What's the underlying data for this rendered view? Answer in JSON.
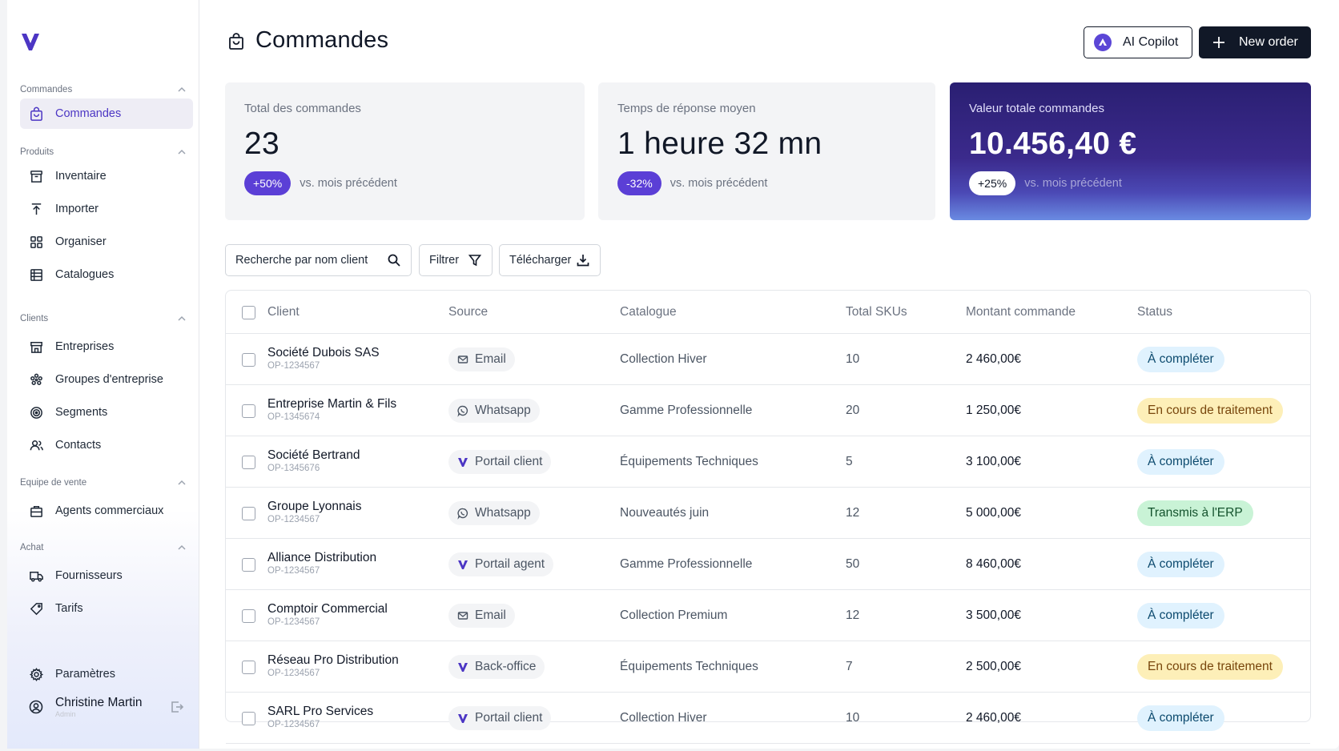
{
  "colors": {
    "accent": "#4c36c4",
    "dark": "#111827",
    "purple_badge": "#5b3fd6"
  },
  "sidebar": {
    "sections": [
      {
        "title": "Commandes",
        "items": [
          {
            "label": "Commandes",
            "icon": "bag-icon",
            "active": true
          }
        ]
      },
      {
        "title": "Produits",
        "items": [
          {
            "label": "Inventaire",
            "icon": "archive-icon"
          },
          {
            "label": "Importer",
            "icon": "upload-icon"
          },
          {
            "label": "Organiser",
            "icon": "grid-icon"
          },
          {
            "label": "Catalogues",
            "icon": "catalog-icon"
          }
        ]
      },
      {
        "title": "Clients",
        "items": [
          {
            "label": "Entreprises",
            "icon": "store-icon"
          },
          {
            "label": "Groupes d'entreprise",
            "icon": "group-icon"
          },
          {
            "label": "Segments",
            "icon": "target-icon"
          },
          {
            "label": "Contacts",
            "icon": "users-icon"
          }
        ]
      },
      {
        "title": "Equipe de vente",
        "items": [
          {
            "label": "Agents commerciaux",
            "icon": "briefcase-icon"
          }
        ]
      },
      {
        "title": "Achat",
        "items": [
          {
            "label": "Fournisseurs",
            "icon": "truck-icon"
          },
          {
            "label": "Tarifs",
            "icon": "tag-icon"
          }
        ]
      }
    ],
    "settings_label": "Paramètres",
    "user": {
      "name": "Christine Martin",
      "role": "Admin"
    }
  },
  "header": {
    "title": "Commandes",
    "copilot_label": "AI Copilot",
    "new_order_label": "New order"
  },
  "stats": [
    {
      "label": "Total des commandes",
      "value": "23",
      "badge": "+50%",
      "compare": "vs. mois précédent"
    },
    {
      "label": "Temps de réponse moyen",
      "value": "1 heure 32 mn",
      "badge": "-32%",
      "compare": "vs. mois précédent"
    },
    {
      "label": "Valeur totale commandes",
      "value": "10.456,40 €",
      "badge": "+25%",
      "compare": "vs. mois précédent"
    }
  ],
  "toolbar": {
    "search_placeholder": "Recherche par nom client",
    "filter_label": "Filtrer",
    "download_label": "Télécharger"
  },
  "table": {
    "columns": [
      "Client",
      "Source",
      "Catalogue",
      "Total SKUs",
      "Montant commande",
      "Status"
    ],
    "rows": [
      {
        "client": "Société Dubois SAS",
        "id": "OP-1234567",
        "source": "Email",
        "source_icon": "mail-icon",
        "catalogue": "Collection Hiver",
        "skus": "10",
        "amount": "2 460,00€",
        "status": "À compléter",
        "status_kind": "blue"
      },
      {
        "client": "Entreprise Martin & Fils",
        "id": "OP-1345674",
        "source": "Whatsapp",
        "source_icon": "whatsapp-icon",
        "catalogue": "Gamme Professionnelle",
        "skus": "20",
        "amount": "1 250,00€",
        "status": "En cours de traitement",
        "status_kind": "yellow"
      },
      {
        "client": "Société Bertrand",
        "id": "OP-1345676",
        "source": "Portail client",
        "source_icon": "brand-v-icon",
        "catalogue": "Équipements Techniques",
        "skus": "5",
        "amount": "3 100,00€",
        "status": "À compléter",
        "status_kind": "blue"
      },
      {
        "client": "Groupe Lyonnais",
        "id": "OP-1234567",
        "source": "Whatsapp",
        "source_icon": "whatsapp-icon",
        "catalogue": "Nouveautés juin",
        "skus": "12",
        "amount": "5 000,00€",
        "status": "Transmis à l'ERP",
        "status_kind": "green"
      },
      {
        "client": "Alliance Distribution",
        "id": "OP-1234567",
        "source": "Portail agent",
        "source_icon": "brand-v-icon",
        "catalogue": "Gamme Professionnelle",
        "skus": "50",
        "amount": "8 460,00€",
        "status": "À compléter",
        "status_kind": "blue"
      },
      {
        "client": "Comptoir Commercial",
        "id": "OP-1234567",
        "source": "Email",
        "source_icon": "mail-icon",
        "catalogue": "Collection Premium",
        "skus": "12",
        "amount": "3 500,00€",
        "status": "À compléter",
        "status_kind": "blue"
      },
      {
        "client": "Réseau Pro Distribution",
        "id": "OP-1234567",
        "source": "Back-office",
        "source_icon": "brand-v-icon",
        "catalogue": "Équipements Techniques",
        "skus": "7",
        "amount": "2 500,00€",
        "status": "En cours de traitement",
        "status_kind": "yellow"
      },
      {
        "client": "SARL Pro Services",
        "id": "OP-1234567",
        "source": "Portail client",
        "source_icon": "brand-v-icon",
        "catalogue": "Collection Hiver",
        "skus": "10",
        "amount": "2 460,00€",
        "status": "À compléter",
        "status_kind": "blue"
      }
    ]
  }
}
